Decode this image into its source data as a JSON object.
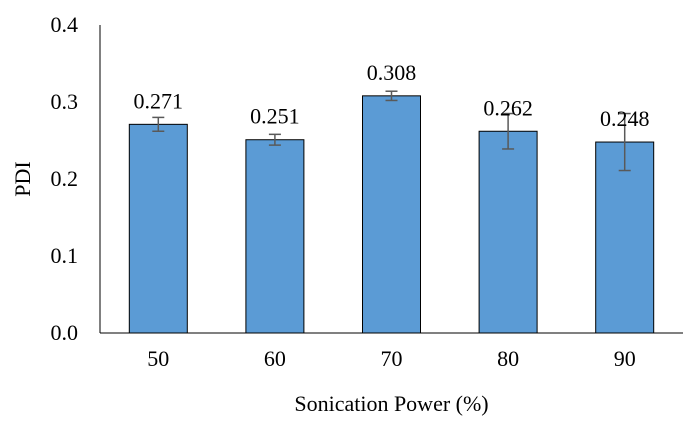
{
  "chart_data": {
    "type": "bar",
    "title": "",
    "xlabel": "Sonication Power (%)",
    "ylabel": "PDI",
    "categories": [
      "50",
      "60",
      "70",
      "80",
      "90"
    ],
    "values": [
      0.271,
      0.251,
      0.308,
      0.262,
      0.248
    ],
    "value_labels": [
      "0.271",
      "0.251",
      "0.308",
      "0.262",
      "0.248"
    ],
    "error": [
      0.009,
      0.007,
      0.006,
      0.023,
      0.037
    ],
    "ylim": [
      0,
      0.4
    ],
    "yticks": [
      0,
      0.1,
      0.2,
      0.3,
      0.4
    ],
    "ytick_labels": [
      "0.0",
      "0.1",
      "0.2",
      "0.3",
      "0.4"
    ],
    "grid": false,
    "legend": "none",
    "bar_color": "#5b9bd5",
    "bar_edge_color": "#000000",
    "error_bar_color": "#595959",
    "axis_color": "#000000"
  }
}
